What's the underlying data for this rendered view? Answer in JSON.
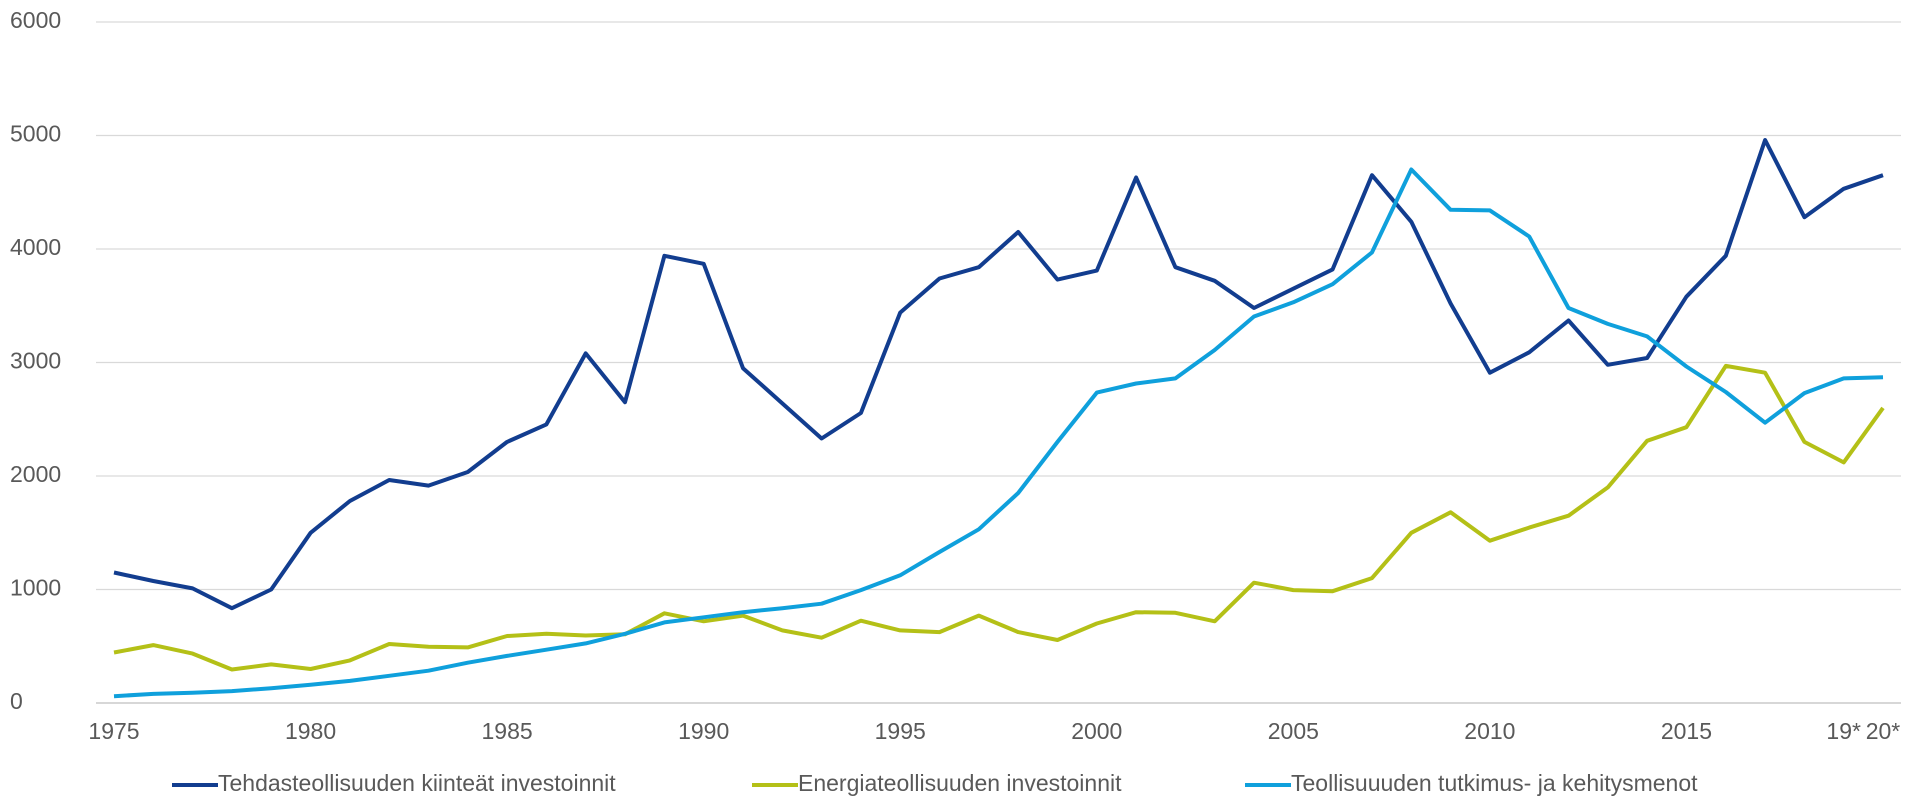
{
  "chart_data": {
    "type": "line",
    "categories": [
      "1975",
      null,
      null,
      null,
      null,
      "1980",
      null,
      null,
      null,
      null,
      "1985",
      null,
      null,
      null,
      null,
      "1990",
      null,
      null,
      null,
      null,
      "1995",
      null,
      null,
      null,
      null,
      "2000",
      null,
      null,
      null,
      null,
      "2005",
      null,
      null,
      null,
      null,
      "2010",
      null,
      null,
      null,
      null,
      "2015",
      null,
      null,
      null,
      "19*",
      "20*"
    ],
    "series": [
      {
        "name": "Tehdasteollisuuden kiinteät investoinnit",
        "color": "#123d8f",
        "values": [
          1150,
          1075,
          1010,
          835,
          1000,
          1500,
          1780,
          1965,
          1915,
          2035,
          2300,
          2455,
          3080,
          2650,
          3940,
          3870,
          2950,
          2640,
          2330,
          2555,
          3440,
          3740,
          3840,
          4150,
          3730,
          3810,
          4630,
          3840,
          3720,
          3480,
          3650,
          3820,
          4650,
          4240,
          3520,
          2910,
          3090,
          3370,
          2980,
          3040,
          3580,
          3940,
          4960,
          4280,
          4530,
          4650
        ]
      },
      {
        "name": "Energiateollisuuden investoinnit",
        "color": "#b4c017",
        "values": [
          445,
          510,
          435,
          295,
          340,
          300,
          375,
          520,
          495,
          490,
          590,
          610,
          595,
          605,
          790,
          720,
          770,
          640,
          575,
          725,
          640,
          625,
          770,
          625,
          555,
          700,
          800,
          795,
          720,
          1060,
          995,
          985,
          1100,
          1500,
          1680,
          1430,
          1545,
          1650,
          1900,
          2310,
          2430,
          2970,
          2910,
          2300,
          2120,
          2600
        ]
      },
      {
        "name": "Teollisuuuden tutkimus- ja kehitysmenot",
        "color": "#0fa0dc",
        "values": [
          60,
          80,
          90,
          105,
          130,
          160,
          195,
          240,
          285,
          355,
          415,
          470,
          525,
          610,
          710,
          755,
          800,
          835,
          875,
          995,
          1125,
          1330,
          1530,
          1850,
          2300,
          2735,
          2815,
          2860,
          3110,
          3405,
          3530,
          3690,
          3970,
          4700,
          4345,
          4340,
          4110,
          3480,
          3340,
          3230,
          2965,
          2740,
          2470,
          2730,
          2860,
          2870
        ]
      }
    ],
    "ylim": [
      0,
      6000
    ],
    "yticks": [
      0,
      1000,
      2000,
      3000,
      4000,
      5000,
      6000
    ],
    "grid": true,
    "legend": "bottom"
  }
}
